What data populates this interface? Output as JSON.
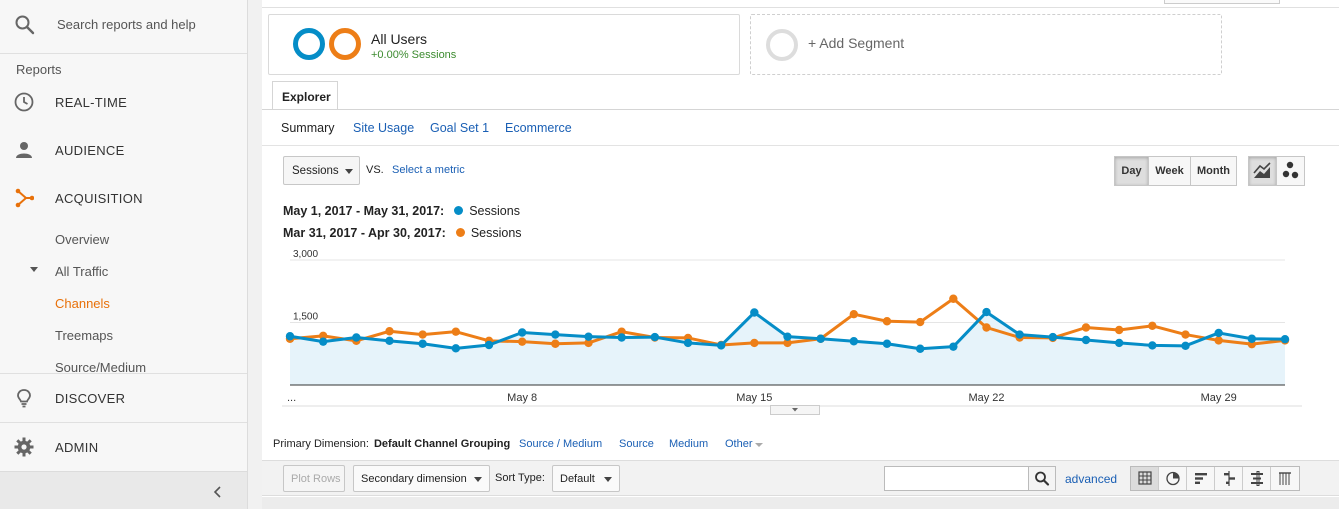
{
  "sidebar": {
    "search_placeholder": "Search reports and help",
    "section_label": "Reports",
    "items": [
      {
        "label": "REAL-TIME",
        "icon": "clock-icon"
      },
      {
        "label": "AUDIENCE",
        "icon": "person-icon"
      },
      {
        "label": "ACQUISITION",
        "icon": "acquisition-icon"
      }
    ],
    "sub_items": [
      "Overview",
      "All Traffic",
      "Channels",
      "Treemaps",
      "Source/Medium"
    ],
    "active_sub_item": "Channels",
    "bottom_items": [
      {
        "label": "DISCOVER",
        "icon": "lightbulb-icon"
      },
      {
        "label": "ADMIN",
        "icon": "gear-icon"
      }
    ]
  },
  "segments": {
    "current": {
      "title": "All Users",
      "subtitle": "+0.00% Sessions"
    },
    "add_label": "+ Add Segment"
  },
  "explorer": {
    "tab_label": "Explorer",
    "subtabs": [
      "Summary",
      "Site Usage",
      "Goal Set 1",
      "Ecommerce"
    ]
  },
  "controls": {
    "metric": "Sessions",
    "vs": "VS.",
    "select_metric": "Select a metric",
    "periods": [
      "Day",
      "Week",
      "Month"
    ],
    "selected_period": "Day"
  },
  "legend": [
    {
      "range": "May 1, 2017 - May 31, 2017:",
      "metric": "Sessions",
      "color": "#058dc7"
    },
    {
      "range": "Mar 31, 2017 - Apr 30, 2017:",
      "metric": "Sessions",
      "color": "#ed7e17"
    }
  ],
  "chart_data": {
    "type": "line",
    "x_tick_labels": [
      "...",
      "May 8",
      "May 15",
      "May 22",
      "May 29"
    ],
    "y_tick_labels": [
      "3,000",
      "1,500"
    ],
    "ylim": [
      0,
      3000
    ],
    "grid": true,
    "series": [
      {
        "name": "Sessions",
        "period": "May 1, 2017 - May 31, 2017",
        "color": "#058dc7",
        "fill": true,
        "values": [
          1170,
          1040,
          1140,
          1060,
          990,
          880,
          960,
          1260,
          1210,
          1160,
          1140,
          1150,
          1010,
          950,
          1740,
          1160,
          1110,
          1050,
          990,
          870,
          920,
          1750,
          1210,
          1150,
          1080,
          1010,
          950,
          940,
          1250,
          1110,
          1100
        ]
      },
      {
        "name": "Sessions",
        "period": "Mar 31, 2017 - Apr 30, 2017",
        "color": "#ed7e17",
        "fill": false,
        "values": [
          1110,
          1180,
          1060,
          1290,
          1210,
          1280,
          1060,
          1040,
          990,
          1010,
          1280,
          1140,
          1130,
          960,
          1010,
          1010,
          1110,
          1700,
          1530,
          1510,
          2070,
          1380,
          1140,
          1130,
          1380,
          1320,
          1420,
          1210,
          1070,
          980,
          1070
        ]
      }
    ]
  },
  "dimensions": {
    "label": "Primary Dimension:",
    "selected": "Default Channel Grouping",
    "links": [
      "Source / Medium",
      "Source",
      "Medium",
      "Other"
    ]
  },
  "toolbar": {
    "plot_rows": "Plot Rows",
    "secondary_dimension": "Secondary dimension",
    "sort_type_label": "Sort Type:",
    "sort_type_value": "Default",
    "advanced": "advanced"
  }
}
